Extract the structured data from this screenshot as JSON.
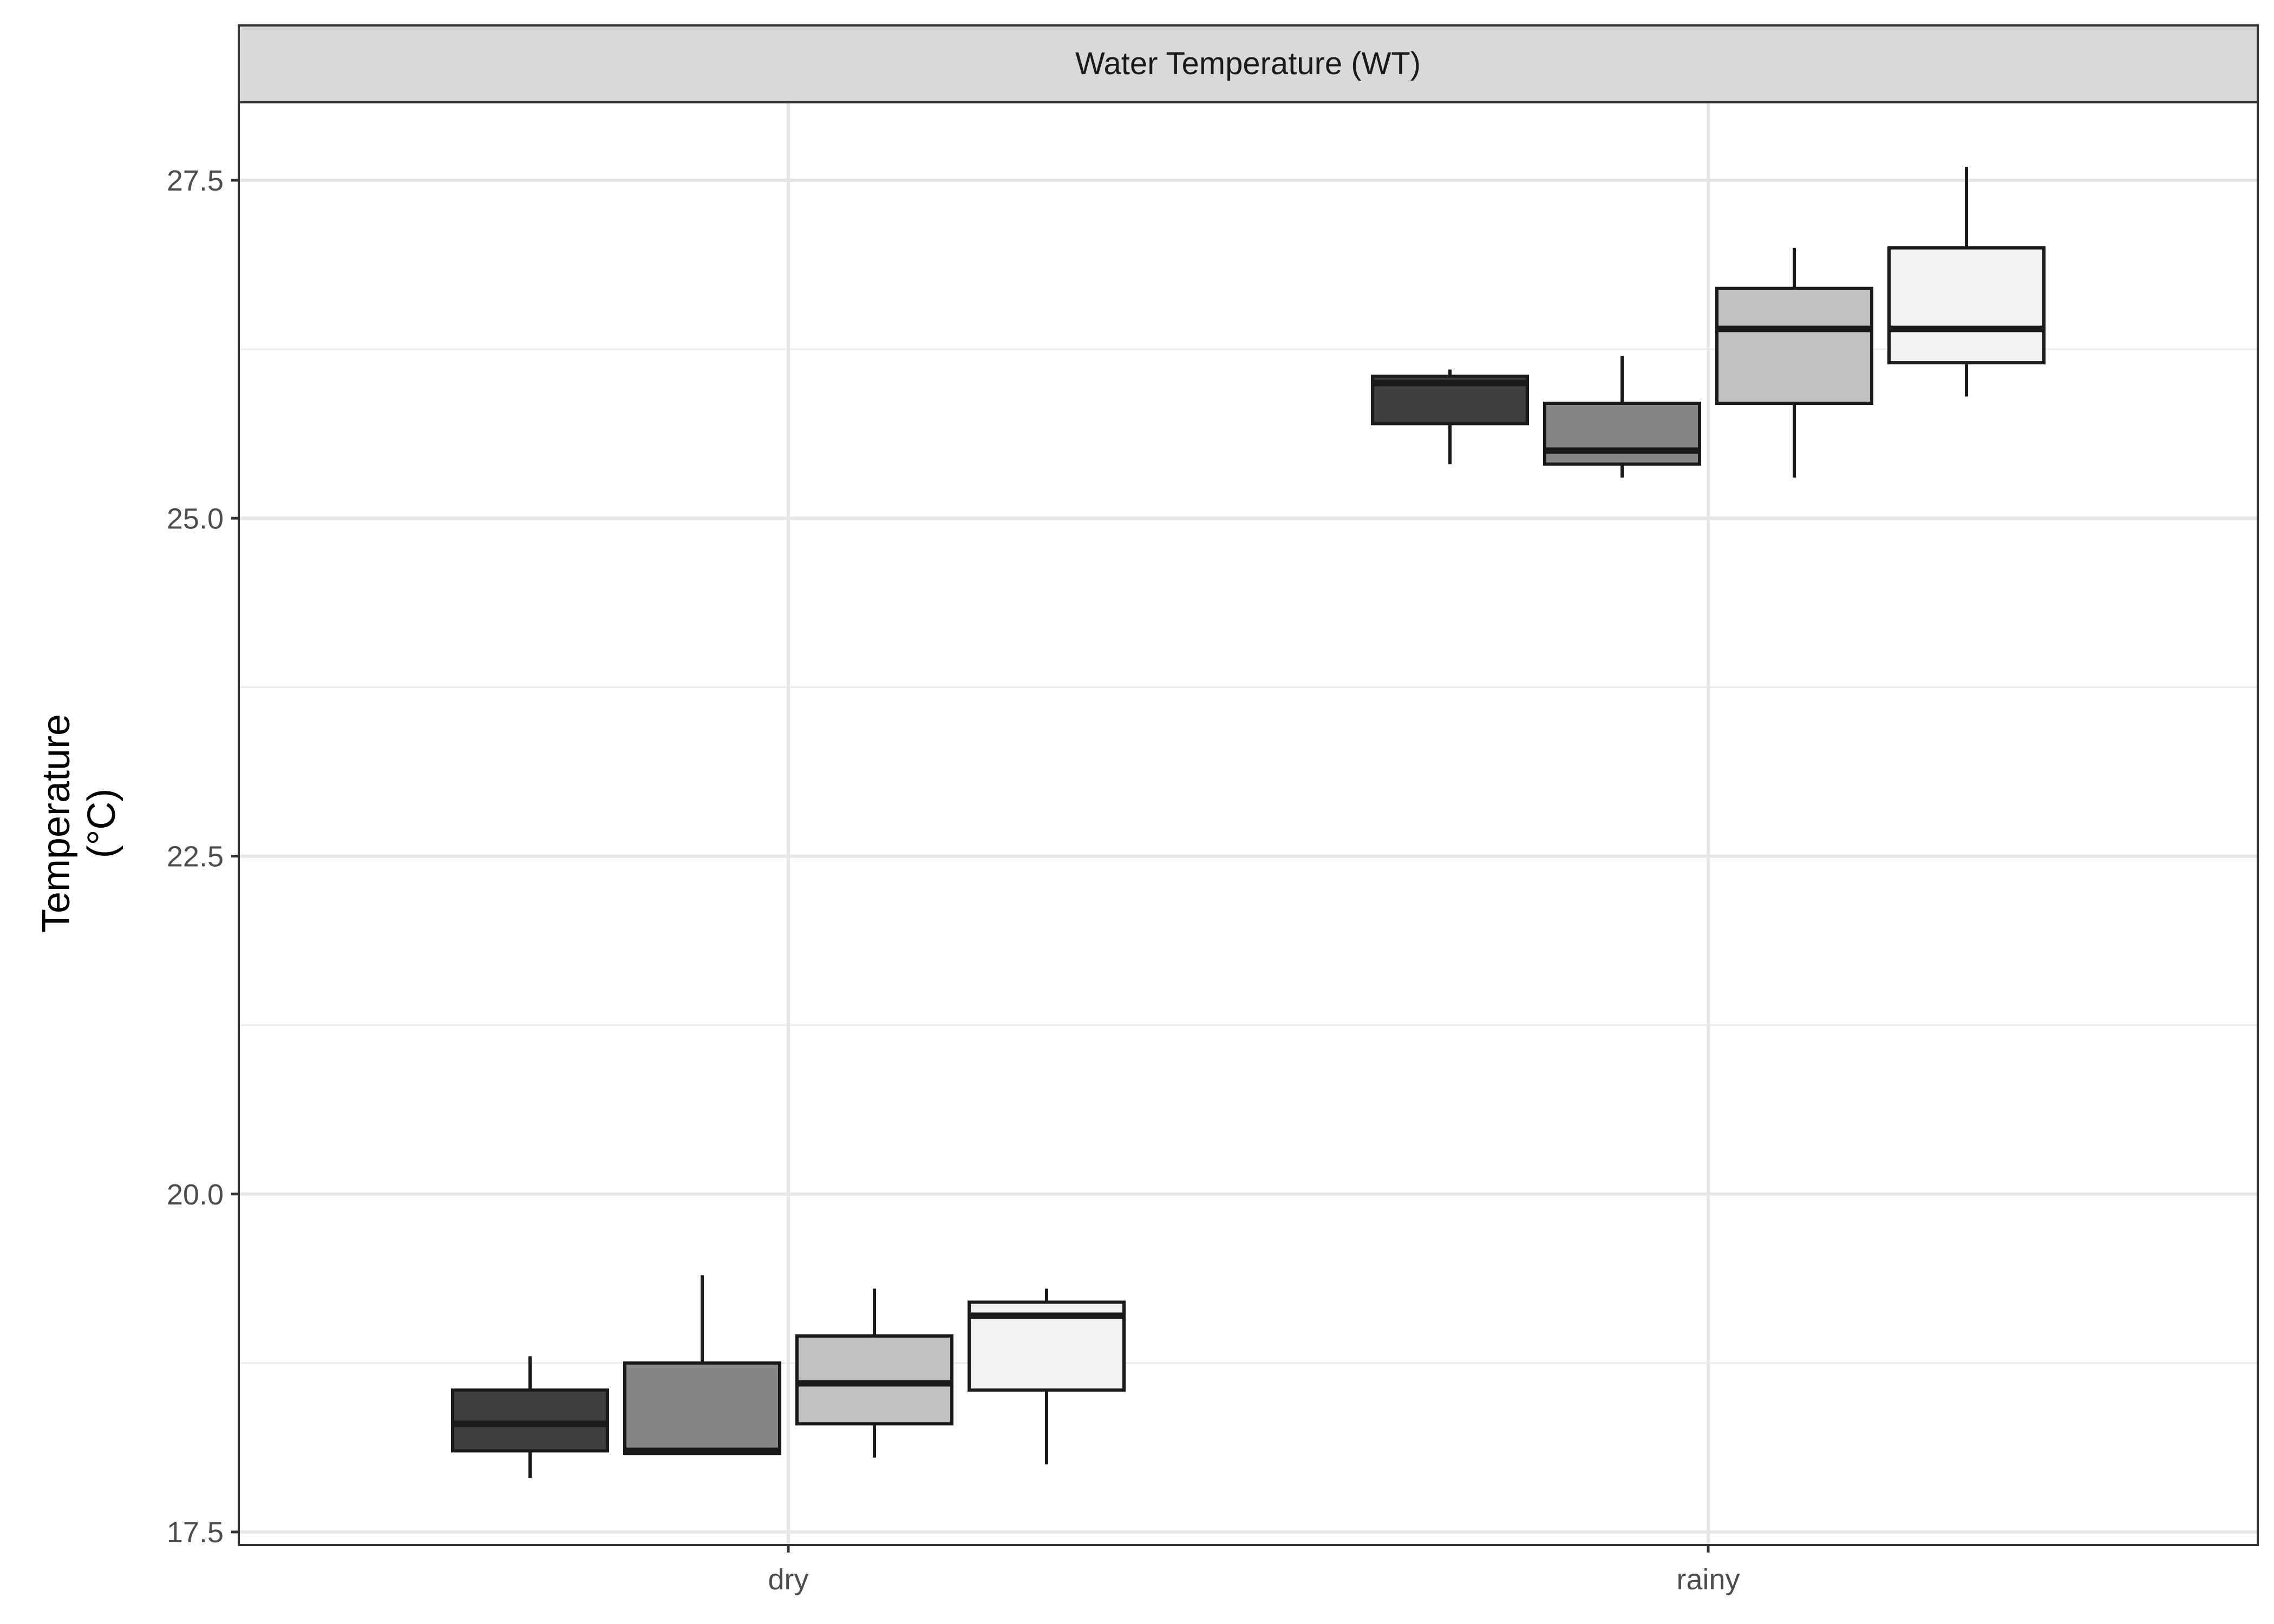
{
  "chart_data": {
    "type": "boxplot",
    "facet_label": "Water Temperature (WT)",
    "ylabel_lines": [
      "Temperature",
      "(°C)"
    ],
    "xlabel": "",
    "ylim": [
      17.45,
      28.1
    ],
    "y_ticks": [
      17.5,
      20.0,
      22.5,
      25.0,
      27.5
    ],
    "y_tick_labels": [
      "17.5",
      "20.0",
      "22.5",
      "25.0",
      "27.5"
    ],
    "y_minor_ticks": [
      18.75,
      21.25,
      23.75,
      26.25
    ],
    "categories": [
      "dry",
      "rainy"
    ],
    "grid": true,
    "legend": "none",
    "series_fills": [
      "#404040",
      "#868686",
      "#c0c0c0",
      "#f2f2f2"
    ],
    "boxes": {
      "dry": [
        {
          "min": 17.9,
          "q1": 18.1,
          "median": 18.3,
          "q3": 18.55,
          "max": 18.8
        },
        {
          "min": 18.08,
          "q1": 18.08,
          "median": 18.1,
          "q3": 18.75,
          "max": 19.4
        },
        {
          "min": 18.05,
          "q1": 18.3,
          "median": 18.6,
          "q3": 18.95,
          "max": 19.3
        },
        {
          "min": 18.0,
          "q1": 18.55,
          "median": 19.1,
          "q3": 19.2,
          "max": 19.3
        }
      ],
      "rainy": [
        {
          "min": 25.4,
          "q1": 25.7,
          "median": 26.0,
          "q3": 26.05,
          "max": 26.1
        },
        {
          "min": 25.3,
          "q1": 25.4,
          "median": 25.5,
          "q3": 25.85,
          "max": 26.2
        },
        {
          "min": 25.3,
          "q1": 25.85,
          "median": 26.4,
          "q3": 26.7,
          "max": 27.0
        },
        {
          "min": 25.9,
          "q1": 26.15,
          "median": 26.4,
          "q3": 27.0,
          "max": 27.6
        }
      ]
    }
  }
}
